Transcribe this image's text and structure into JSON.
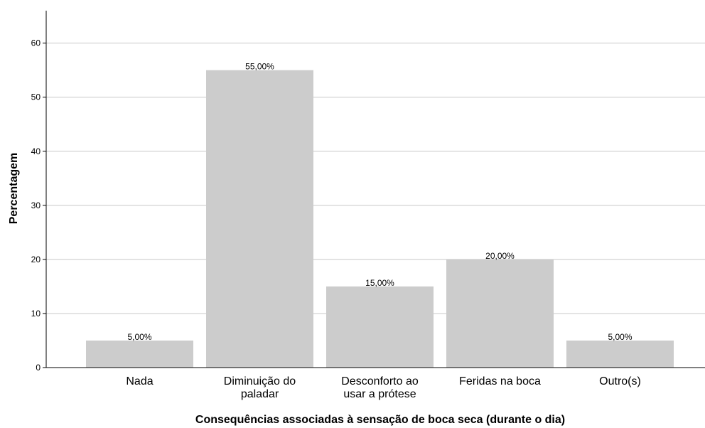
{
  "chart_data": {
    "type": "bar",
    "categories": [
      [
        "Nada"
      ],
      [
        "Diminuição do",
        "paladar"
      ],
      [
        "Desconforto ao",
        "usar a prótese"
      ],
      [
        "Feridas na boca"
      ],
      [
        "Outro(s)"
      ]
    ],
    "values": [
      5,
      55,
      15,
      20,
      5
    ],
    "data_labels": [
      "5,00%",
      "55,00%",
      "15,00%",
      "20,00%",
      "5,00%"
    ],
    "xlabel": "Consequências associadas à sensação de boca seca (durante o dia)",
    "ylabel": "Percentagem",
    "ylim": [
      0,
      66
    ],
    "yticks": [
      0,
      10,
      20,
      30,
      40,
      50,
      60
    ],
    "grid": true,
    "bar_color": "#cccccc",
    "gridline_color": "#c8c8c8"
  }
}
